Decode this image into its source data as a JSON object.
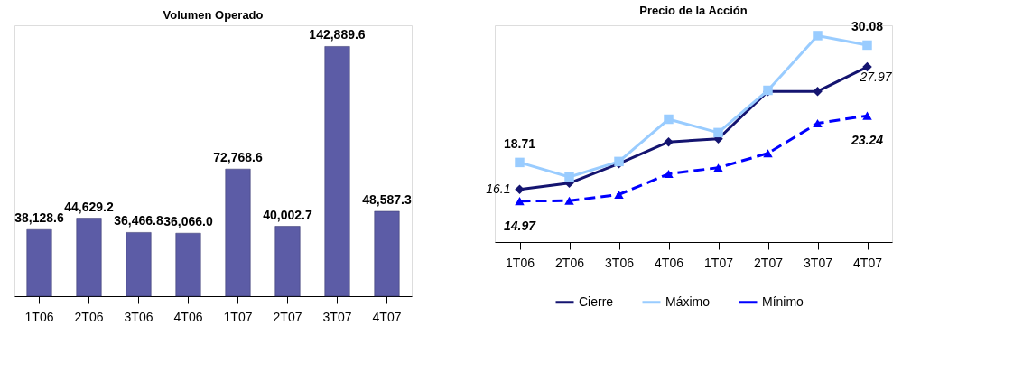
{
  "chart_data": [
    {
      "type": "bar",
      "title": "Volumen Operado",
      "categories": [
        "1T06",
        "2T06",
        "3T06",
        "4T06",
        "1T07",
        "2T07",
        "3T07",
        "4T07"
      ],
      "values": [
        38128.6,
        44629.2,
        36466.8,
        36066.0,
        72768.6,
        40002.7,
        142889.6,
        48587.3
      ],
      "value_labels": [
        "38,128.6",
        "44,629.2",
        "36,466.8",
        "36,066.0",
        "72,768.6",
        "40,002.7",
        "142,889.6",
        "48,587.3"
      ],
      "color": "#5c5ca6",
      "ylim": [
        0,
        155000
      ],
      "tick_labels": "x",
      "grid": false
    },
    {
      "type": "line",
      "title": "Precio de la Acción",
      "categories": [
        "1T06",
        "2T06",
        "3T06",
        "4T06",
        "1T07",
        "2T07",
        "3T07",
        "4T07"
      ],
      "series": [
        {
          "name": "Cierre",
          "color": "#141470",
          "marker": "diamond",
          "line_style": "solid",
          "values": [
            16.1,
            16.7,
            18.6,
            20.7,
            21.0,
            25.6,
            25.6,
            27.97
          ],
          "value_labels": [
            "16.1",
            null,
            null,
            null,
            null,
            null,
            null,
            "27.97"
          ]
        },
        {
          "name": "Máximo",
          "color": "#99ccff",
          "marker": "square",
          "line_style": "solid",
          "values": [
            18.71,
            17.3,
            18.8,
            22.9,
            21.6,
            25.7,
            31.0,
            30.08
          ],
          "value_labels": [
            "18.71",
            null,
            null,
            null,
            null,
            null,
            null,
            "30.08"
          ]
        },
        {
          "name": "Mínimo",
          "color": "#0000ff",
          "marker": "triangle",
          "line_style": "dashed",
          "values": [
            14.97,
            15.0,
            15.6,
            17.6,
            18.2,
            19.6,
            22.5,
            23.24
          ],
          "value_labels": [
            "14.97",
            null,
            null,
            null,
            null,
            null,
            null,
            "23.24"
          ]
        }
      ],
      "ylim": [
        11,
        32
      ],
      "tick_labels": "x",
      "grid": false,
      "legend": "bottom"
    }
  ]
}
